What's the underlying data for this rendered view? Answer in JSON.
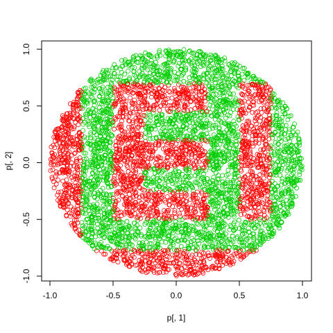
{
  "chart_data": {
    "type": "scatter",
    "title": "",
    "xlabel": "p[, 1]",
    "ylabel": "p[, 2]",
    "xlim": [
      -1.0,
      1.0
    ],
    "ylim": [
      -1.0,
      1.0
    ],
    "xticks": [
      -1.0,
      -0.5,
      0.0,
      0.5,
      1.0
    ],
    "xtick_labels": [
      "-1.0",
      "-0.5",
      "0.0",
      "0.5",
      "1.0"
    ],
    "yticks": [
      -1.0,
      -0.5,
      0.0,
      0.5,
      1.0
    ],
    "ytick_labels": [
      "-1.0",
      "-0.5",
      "0.0",
      "0.5",
      "1.0"
    ],
    "grid": false,
    "marker": "open-circle",
    "n_points_estimate": 5000,
    "domain": "unit disk",
    "colors": {
      "red": "#ff0000",
      "green": "#00cd00"
    },
    "regions": {
      "description": "Points uniformly filling the unit disk; color is red inside the letters 'E' and 'I' and the crescent band near x<-0.75 and y<-0.75, green elsewhere.",
      "red_rectangles": [
        {
          "x": [
            -1.0,
            -0.75
          ],
          "y": [
            -1.0,
            1.0
          ]
        },
        {
          "x": [
            -1.0,
            1.0
          ],
          "y": [
            -1.0,
            -0.77
          ]
        },
        {
          "x": [
            -0.5,
            -0.25
          ],
          "y": [
            -0.5,
            0.7
          ]
        },
        {
          "x": [
            -0.5,
            0.25
          ],
          "y": [
            0.45,
            0.7
          ]
        },
        {
          "x": [
            -0.5,
            0.25
          ],
          "y": [
            -0.05,
            0.2
          ]
        },
        {
          "x": [
            -0.5,
            0.25
          ],
          "y": [
            -0.5,
            -0.25
          ]
        },
        {
          "x": [
            0.5,
            0.75
          ],
          "y": [
            -0.5,
            0.7
          ]
        }
      ]
    }
  }
}
